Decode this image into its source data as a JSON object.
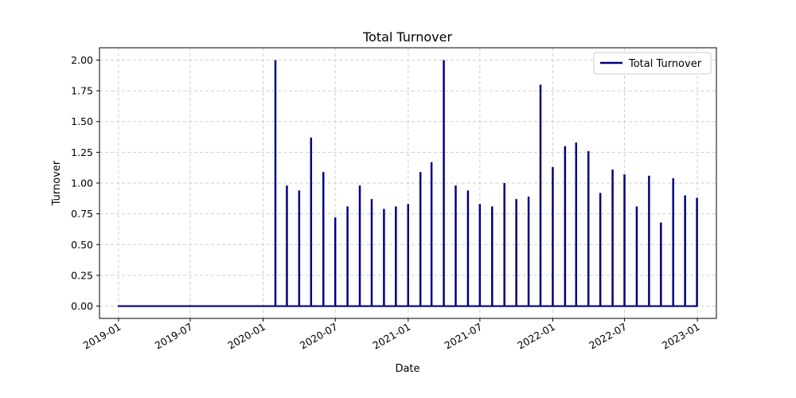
{
  "chart_data": {
    "type": "line",
    "title": "Total Turnover",
    "xlabel": "Date",
    "ylabel": "Turnover",
    "xlim": [
      "2018-11-14",
      "2023-02-18"
    ],
    "ylim": [
      -0.1,
      2.1
    ],
    "x_ticks": [
      "2019-01",
      "2019-07",
      "2020-01",
      "2020-07",
      "2021-01",
      "2021-07",
      "2022-01",
      "2022-07",
      "2023-01"
    ],
    "y_ticks": [
      "0.00",
      "0.25",
      "0.50",
      "0.75",
      "1.00",
      "1.25",
      "1.50",
      "1.75",
      "2.00"
    ],
    "grid": true,
    "legend_position": "top-right",
    "series": [
      {
        "name": "Total Turnover",
        "color": "#000080",
        "baseline": 0,
        "x_start": "2019-01-01",
        "x_end": "2022-12-31",
        "spikes": [
          {
            "date": "2020-02-01",
            "value": 2.0
          },
          {
            "date": "2020-03-01",
            "value": 0.98
          },
          {
            "date": "2020-04-01",
            "value": 0.94
          },
          {
            "date": "2020-05-01",
            "value": 1.37
          },
          {
            "date": "2020-06-01",
            "value": 1.09
          },
          {
            "date": "2020-07-01",
            "value": 0.72
          },
          {
            "date": "2020-08-01",
            "value": 0.81
          },
          {
            "date": "2020-09-01",
            "value": 0.98
          },
          {
            "date": "2020-10-01",
            "value": 0.87
          },
          {
            "date": "2020-11-01",
            "value": 0.79
          },
          {
            "date": "2020-12-01",
            "value": 0.81
          },
          {
            "date": "2021-01-01",
            "value": 0.83
          },
          {
            "date": "2021-02-01",
            "value": 1.09
          },
          {
            "date": "2021-03-01",
            "value": 1.17
          },
          {
            "date": "2021-04-01",
            "value": 2.0
          },
          {
            "date": "2021-05-01",
            "value": 0.98
          },
          {
            "date": "2021-06-01",
            "value": 0.94
          },
          {
            "date": "2021-07-01",
            "value": 0.83
          },
          {
            "date": "2021-08-01",
            "value": 0.81
          },
          {
            "date": "2021-09-01",
            "value": 1.0
          },
          {
            "date": "2021-10-01",
            "value": 0.87
          },
          {
            "date": "2021-11-01",
            "value": 0.89
          },
          {
            "date": "2021-12-01",
            "value": 1.8
          },
          {
            "date": "2022-01-01",
            "value": 1.13
          },
          {
            "date": "2022-02-01",
            "value": 1.3
          },
          {
            "date": "2022-03-01",
            "value": 1.33
          },
          {
            "date": "2022-04-01",
            "value": 1.26
          },
          {
            "date": "2022-05-01",
            "value": 0.92
          },
          {
            "date": "2022-06-01",
            "value": 1.11
          },
          {
            "date": "2022-07-01",
            "value": 1.07
          },
          {
            "date": "2022-08-01",
            "value": 0.81
          },
          {
            "date": "2022-09-01",
            "value": 1.06
          },
          {
            "date": "2022-10-01",
            "value": 0.68
          },
          {
            "date": "2022-11-01",
            "value": 1.04
          },
          {
            "date": "2022-12-01",
            "value": 0.9
          },
          {
            "date": "2022-12-31",
            "value": 0.88
          }
        ]
      }
    ]
  }
}
